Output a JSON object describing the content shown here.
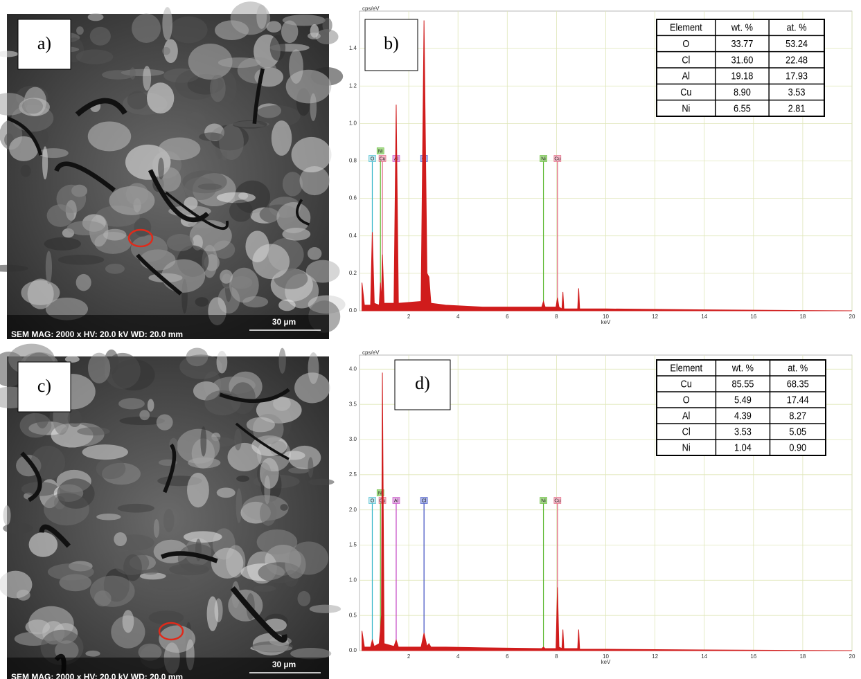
{
  "panels": [
    {
      "label": "a)",
      "caption": "SEM  MAG: 2000 x  HV: 20.0 kV  WD: 20.0 mm",
      "scale": "30 µm"
    },
    {
      "label": "c)",
      "caption": "SEM  MAG: 2000 x  HV: 20.0 kV  WD: 20.0 mm",
      "scale": "30 µm"
    }
  ],
  "chart_data": [
    {
      "type": "line",
      "label": "b)",
      "y_label": "cps/eV",
      "x_label": "keV",
      "color": "#d01c1c",
      "grid": true,
      "xlim": [
        0,
        20
      ],
      "xticks": [
        2,
        4,
        6,
        8,
        10,
        12,
        14,
        16,
        18,
        20
      ],
      "ylim": [
        0,
        1.6
      ],
      "yticks": [
        {
          "value": 0,
          "label": "0.0"
        },
        0.2,
        0.4,
        0.6,
        0.8,
        {
          "value": 1,
          "label": "1.0"
        },
        1.2,
        1.4
      ],
      "x": [
        0.1,
        0.2,
        0.45,
        0.52,
        0.6,
        0.8,
        0.85,
        0.89,
        0.93,
        1.0,
        1.4,
        1.49,
        1.58,
        2.5,
        2.62,
        2.74,
        2.82,
        2.9,
        3.5,
        5,
        7.4,
        7.47,
        7.54,
        7.98,
        8.04,
        8.1,
        8.22,
        8.26,
        8.3,
        8.86,
        8.9,
        8.94,
        10,
        14,
        20
      ],
      "values": [
        0.15,
        0.03,
        0.03,
        0.42,
        0.04,
        0.03,
        0.15,
        0.05,
        0.3,
        0.04,
        0.04,
        1.1,
        0.04,
        0.05,
        1.55,
        0.2,
        0.18,
        0.04,
        0.03,
        0.02,
        0.02,
        0.05,
        0.02,
        0.02,
        0.07,
        0.02,
        0.01,
        0.1,
        0.01,
        0.01,
        0.12,
        0.01,
        0.01,
        0.005,
        0
      ],
      "markers": [
        {
          "element": "O",
          "x": 0.52,
          "height": 0.8,
          "color": "#33b5c8",
          "bg": "#bfe8f0"
        },
        {
          "element": "Cu",
          "x": 0.93,
          "height": 0.8,
          "color": "#e0607a",
          "bg": "#f5b8c8"
        },
        {
          "element": "Ni",
          "x": 0.85,
          "height": 0.8,
          "color": "#5cb82e",
          "bg": "#a8dc8c"
        },
        {
          "element": "Al",
          "x": 1.49,
          "height": 0.8,
          "color": "#c040c0",
          "bg": "#e8b0e8"
        },
        {
          "element": "Cl",
          "x": 2.62,
          "height": 0.8,
          "color": "#3a4ac0",
          "bg": "#a8b4ec"
        },
        {
          "element": "Ni",
          "x": 7.47,
          "height": 0.8,
          "color": "#5cb82e",
          "bg": "#a8dc8c"
        },
        {
          "element": "Cu",
          "x": 8.04,
          "height": 0.8,
          "color": "#e0607a",
          "bg": "#f5b8c8"
        }
      ],
      "table": {
        "header": [
          "Element",
          "wt. %",
          "at. %"
        ],
        "rows": [
          [
            "O",
            "33.77",
            "53.24"
          ],
          [
            "Cl",
            "31.60",
            "22.48"
          ],
          [
            "Al",
            "19.18",
            "17.93"
          ],
          [
            "Cu",
            "8.90",
            "3.53"
          ],
          [
            "Ni",
            "6.55",
            "2.81"
          ]
        ]
      }
    },
    {
      "type": "line",
      "label": "d)",
      "y_label": "cps/eV",
      "x_label": "keV",
      "color": "#d01c1c",
      "grid": true,
      "xlim": [
        0,
        20
      ],
      "xticks": [
        2,
        4,
        6,
        8,
        10,
        12,
        14,
        16,
        18,
        20
      ],
      "ylim": [
        0,
        4.2
      ],
      "yticks": [
        {
          "value": 0,
          "label": "0.0"
        },
        0.5,
        {
          "value": 1,
          "label": "1.0"
        },
        1.5,
        {
          "value": 2,
          "label": "2.0"
        },
        2.5,
        {
          "value": 3,
          "label": "3.0"
        },
        3.5,
        {
          "value": 4,
          "label": "4.0"
        }
      ],
      "x": [
        0.1,
        0.2,
        0.45,
        0.52,
        0.6,
        0.8,
        0.85,
        0.89,
        0.93,
        1.0,
        1.4,
        1.49,
        1.58,
        2.5,
        2.62,
        2.74,
        2.82,
        2.9,
        3.5,
        5,
        7.4,
        7.47,
        7.54,
        7.98,
        8.04,
        8.1,
        8.22,
        8.26,
        8.3,
        8.86,
        8.9,
        8.94,
        10,
        14,
        20
      ],
      "values": [
        0.28,
        0.05,
        0.05,
        0.15,
        0.06,
        0.1,
        0.3,
        0.5,
        3.95,
        0.1,
        0.06,
        0.15,
        0.05,
        0.05,
        0.25,
        0.06,
        0.1,
        0.05,
        0.05,
        0.04,
        0.03,
        0.05,
        0.03,
        0.03,
        0.9,
        0.05,
        0.03,
        0.3,
        0.03,
        0.03,
        0.3,
        0.02,
        0.02,
        0.01,
        0
      ],
      "markers": [
        {
          "element": "O",
          "x": 0.52,
          "height": 2.1,
          "color": "#33b5c8",
          "bg": "#bfe8f0"
        },
        {
          "element": "Cu",
          "x": 0.93,
          "height": 2.1,
          "color": "#e0607a",
          "bg": "#f5b8c8"
        },
        {
          "element": "Ni",
          "x": 0.85,
          "height": 2.1,
          "color": "#5cb82e",
          "bg": "#a8dc8c"
        },
        {
          "element": "Al",
          "x": 1.49,
          "height": 2.1,
          "color": "#c040c0",
          "bg": "#e8b0e8"
        },
        {
          "element": "Cl",
          "x": 2.62,
          "height": 2.1,
          "color": "#3a4ac0",
          "bg": "#a8b4ec"
        },
        {
          "element": "Ni",
          "x": 7.47,
          "height": 2.1,
          "color": "#5cb82e",
          "bg": "#a8dc8c"
        },
        {
          "element": "Cu",
          "x": 8.04,
          "height": 2.1,
          "color": "#e0607a",
          "bg": "#f5b8c8"
        }
      ],
      "table": {
        "header": [
          "Element",
          "wt. %",
          "at. %"
        ],
        "rows": [
          [
            "Cu",
            "85.55",
            "68.35"
          ],
          [
            "O",
            "5.49",
            "17.44"
          ],
          [
            "Al",
            "4.39",
            "8.27"
          ],
          [
            "Cl",
            "3.53",
            "5.05"
          ],
          [
            "Ni",
            "1.04",
            "0.90"
          ]
        ]
      }
    }
  ]
}
